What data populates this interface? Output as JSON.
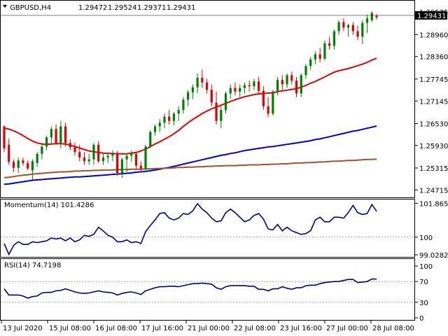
{
  "header": {
    "symbol": "GBPUSD,H4",
    "open": "1.29472",
    "high": "1.29524",
    "low": "1.29371",
    "close": "1.29431",
    "current_price_tag": "1.29431"
  },
  "chart_data": [
    {
      "type": "candlestick",
      "panel": "price",
      "ylim": [
        1.2455,
        1.2975
      ],
      "y_ticks": [
        "1.29575",
        "1.28960",
        "1.28360",
        "1.27745",
        "1.27145",
        "1.26530",
        "1.25930",
        "1.25315",
        "1.24715"
      ],
      "candles_ohlc": [
        [
          1.2645,
          1.2648,
          1.2575,
          1.2585
        ],
        [
          1.2595,
          1.2612,
          1.254,
          1.2548
        ],
        [
          1.2548,
          1.2555,
          1.252,
          1.2532
        ],
        [
          1.2532,
          1.256,
          1.2518,
          1.2552
        ],
        [
          1.2552,
          1.256,
          1.2538,
          1.2545
        ],
        [
          1.2545,
          1.2552,
          1.2525,
          1.253
        ],
        [
          1.2525,
          1.2555,
          1.25,
          1.255
        ],
        [
          1.2545,
          1.2575,
          1.2535,
          1.257
        ],
        [
          1.257,
          1.26,
          1.2555,
          1.259
        ],
        [
          1.259,
          1.262,
          1.258,
          1.2615
        ],
        [
          1.2615,
          1.2645,
          1.26,
          1.2638
        ],
        [
          1.2638,
          1.265,
          1.2595,
          1.26
        ],
        [
          1.26,
          1.266,
          1.2585,
          1.2645
        ],
        [
          1.2645,
          1.2655,
          1.259,
          1.26
        ],
        [
          1.26,
          1.261,
          1.258,
          1.2588
        ],
        [
          1.2588,
          1.26,
          1.2565,
          1.2575
        ],
        [
          1.2575,
          1.2595,
          1.255,
          1.256
        ],
        [
          1.256,
          1.2575,
          1.254,
          1.255
        ],
        [
          1.255,
          1.257,
          1.254,
          1.2555
        ],
        [
          1.2555,
          1.26,
          1.254,
          1.2595
        ],
        [
          1.2595,
          1.2605,
          1.2545,
          1.255
        ],
        [
          1.255,
          1.2572,
          1.254,
          1.256
        ],
        [
          1.256,
          1.2575,
          1.2545,
          1.2565
        ],
        [
          1.2565,
          1.258,
          1.255,
          1.2572
        ],
        [
          1.2572,
          1.2578,
          1.251,
          1.2518
        ],
        [
          1.2518,
          1.256,
          1.2505,
          1.2555
        ],
        [
          1.2555,
          1.2572,
          1.252,
          1.2565
        ],
        [
          1.2565,
          1.258,
          1.2548,
          1.257
        ],
        [
          1.257,
          1.2575,
          1.253,
          1.2538
        ],
        [
          1.2538,
          1.255,
          1.252,
          1.253
        ],
        [
          1.253,
          1.2595,
          1.252,
          1.259
        ],
        [
          1.259,
          1.2635,
          1.2585,
          1.263
        ],
        [
          1.263,
          1.265,
          1.262,
          1.2645
        ],
        [
          1.2645,
          1.2665,
          1.263,
          1.2655
        ],
        [
          1.2655,
          1.268,
          1.264,
          1.2672
        ],
        [
          1.2672,
          1.269,
          1.265,
          1.266
        ],
        [
          1.266,
          1.2685,
          1.2648,
          1.268
        ],
        [
          1.268,
          1.27,
          1.266,
          1.269
        ],
        [
          1.269,
          1.2725,
          1.268,
          1.2718
        ],
        [
          1.2718,
          1.2745,
          1.27,
          1.2738
        ],
        [
          1.2738,
          1.276,
          1.272,
          1.2752
        ],
        [
          1.2752,
          1.279,
          1.2735,
          1.2778
        ],
        [
          1.2778,
          1.28,
          1.275,
          1.2765
        ],
        [
          1.2765,
          1.2775,
          1.2735,
          1.2745
        ],
        [
          1.2745,
          1.276,
          1.27,
          1.271
        ],
        [
          1.271,
          1.274,
          1.265,
          1.266
        ],
        [
          1.266,
          1.27,
          1.264,
          1.269
        ],
        [
          1.269,
          1.274,
          1.268,
          1.2735
        ],
        [
          1.2735,
          1.276,
          1.272,
          1.275
        ],
        [
          1.275,
          1.2765,
          1.273,
          1.274
        ],
        [
          1.274,
          1.276,
          1.2725,
          1.275
        ],
        [
          1.275,
          1.2765,
          1.2735,
          1.2758
        ],
        [
          1.2758,
          1.277,
          1.274,
          1.2755
        ],
        [
          1.2755,
          1.2775,
          1.2745,
          1.2768
        ],
        [
          1.2768,
          1.278,
          1.2735,
          1.2742
        ],
        [
          1.2742,
          1.2755,
          1.269,
          1.27
        ],
        [
          1.27,
          1.2725,
          1.267,
          1.268
        ],
        [
          1.268,
          1.2745,
          1.2675,
          1.274
        ],
        [
          1.274,
          1.278,
          1.273,
          1.2772
        ],
        [
          1.2772,
          1.2785,
          1.2745,
          1.276
        ],
        [
          1.276,
          1.279,
          1.275,
          1.2785
        ],
        [
          1.2785,
          1.2795,
          1.276,
          1.277
        ],
        [
          1.277,
          1.278,
          1.2725,
          1.2735
        ],
        [
          1.2735,
          1.279,
          1.2725,
          1.2785
        ],
        [
          1.2785,
          1.2815,
          1.2775,
          1.281
        ],
        [
          1.281,
          1.2835,
          1.28,
          1.2828
        ],
        [
          1.2828,
          1.285,
          1.2815,
          1.2842
        ],
        [
          1.2842,
          1.286,
          1.282,
          1.283
        ],
        [
          1.283,
          1.288,
          1.2825,
          1.2872
        ],
        [
          1.2872,
          1.289,
          1.2855,
          1.2865
        ],
        [
          1.2865,
          1.291,
          1.2855,
          1.2905
        ],
        [
          1.2905,
          1.2935,
          1.2895,
          1.293
        ],
        [
          1.293,
          1.294,
          1.2905,
          1.2915
        ],
        [
          1.2915,
          1.2925,
          1.289,
          1.2922
        ],
        [
          1.2922,
          1.293,
          1.2895,
          1.2905
        ],
        [
          1.2905,
          1.292,
          1.288,
          1.289
        ],
        [
          1.289,
          1.2935,
          1.287,
          1.2928
        ],
        [
          1.2928,
          1.295,
          1.29,
          1.294
        ],
        [
          1.2935,
          1.296,
          1.293,
          1.2955
        ],
        [
          1.2947,
          1.2952,
          1.2937,
          1.2943
        ]
      ],
      "overlays": [
        {
          "color": "#e00000",
          "period_hint": "fast MA",
          "values": [
            1.264,
            1.2638,
            1.2633,
            1.2627,
            1.262,
            1.2612,
            1.2605,
            1.26,
            1.2597,
            1.2596,
            1.2597,
            1.2598,
            1.2598,
            1.2597,
            1.2594,
            1.259,
            1.2586,
            1.2582,
            1.2578,
            1.2576,
            1.2574,
            1.2572,
            1.2571,
            1.2571,
            1.257,
            1.257,
            1.257,
            1.2572,
            1.2574,
            1.2578,
            1.2583,
            1.259,
            1.2597,
            1.2603,
            1.261,
            1.2617,
            1.2625,
            1.2634,
            1.2645,
            1.2655,
            1.2664,
            1.2672,
            1.268,
            1.2687,
            1.2693,
            1.2698,
            1.2703,
            1.2708,
            1.2713,
            1.2718,
            1.2722,
            1.2726,
            1.2729,
            1.2732,
            1.2734,
            1.2735,
            1.2736,
            1.2737,
            1.274,
            1.2742,
            1.2744,
            1.2746,
            1.2748,
            1.2752,
            1.2757,
            1.2763,
            1.2768,
            1.2774,
            1.278,
            1.2787,
            1.2793,
            1.2797,
            1.28,
            1.2803,
            1.2807,
            1.2811,
            1.2815,
            1.282,
            1.2826,
            1.2831
          ]
        },
        {
          "color": "#0000c8",
          "period_hint": "slow MA",
          "values": [
            1.2487,
            1.2488,
            1.249,
            1.2492,
            1.2494,
            1.2496,
            1.2498,
            1.2499,
            1.25,
            1.2501,
            1.2502,
            1.2503,
            1.2504,
            1.2505,
            1.2506,
            1.2507,
            1.2507,
            1.2508,
            1.2509,
            1.251,
            1.2511,
            1.2512,
            1.2513,
            1.2514,
            1.2515,
            1.2516,
            1.2517,
            1.2518,
            1.252,
            1.2521,
            1.2522,
            1.2524,
            1.2526,
            1.2528,
            1.2531,
            1.2533,
            1.2536,
            1.2539,
            1.2542,
            1.2545,
            1.2548,
            1.2551,
            1.2554,
            1.2557,
            1.256,
            1.2563,
            1.2566,
            1.2568,
            1.2571,
            1.2573,
            1.2576,
            1.2579,
            1.2581,
            1.2583,
            1.2585,
            1.2587,
            1.2589,
            1.259,
            1.2592,
            1.2594,
            1.2596,
            1.2598,
            1.26,
            1.2602,
            1.2604,
            1.2606,
            1.2609,
            1.2611,
            1.2614,
            1.2617,
            1.262,
            1.2623,
            1.2626,
            1.2629,
            1.2632,
            1.2634,
            1.2637,
            1.264,
            1.2643,
            1.2646
          ]
        },
        {
          "color": "#a0522d",
          "period_hint": "long MA",
          "values": [
            1.2505,
            1.2506,
            1.2508,
            1.251,
            1.2512,
            1.2513,
            1.2515,
            1.2516,
            1.2517,
            1.2518,
            1.2519,
            1.252,
            1.2521,
            1.2521,
            1.2522,
            1.2523,
            1.2523,
            1.2524,
            1.2524,
            1.2525,
            1.2525,
            1.2526,
            1.2526,
            1.2526,
            1.2527,
            1.2527,
            1.2527,
            1.2528,
            1.2528,
            1.2528,
            1.2529,
            1.2529,
            1.253,
            1.253,
            1.2531,
            1.2531,
            1.2532,
            1.2533,
            1.2533,
            1.2534,
            1.2534,
            1.2535,
            1.2535,
            1.2536,
            1.2536,
            1.2537,
            1.2537,
            1.2538,
            1.2538,
            1.2538,
            1.2539,
            1.2539,
            1.254,
            1.254,
            1.254,
            1.2541,
            1.2541,
            1.2542,
            1.2542,
            1.2543,
            1.2543,
            1.2544,
            1.2545,
            1.2545,
            1.2546,
            1.2546,
            1.2547,
            1.2548,
            1.2548,
            1.2549,
            1.255,
            1.255,
            1.2551,
            1.2552,
            1.2552,
            1.2553,
            1.2554,
            1.2555,
            1.2555,
            1.2556
          ]
        }
      ]
    },
    {
      "type": "line",
      "panel": "momentum",
      "title": "Momentum(14) 101.4286",
      "ylim": [
        98.95,
        102.0
      ],
      "y_ticks": [
        "101.8652",
        "100",
        "99.0282"
      ],
      "reference_level": 100,
      "series": [
        {
          "color": "#000080",
          "values": [
            99.65,
            99.05,
            99.55,
            99.75,
            99.6,
            99.6,
            99.75,
            99.7,
            99.75,
            99.8,
            99.95,
            99.9,
            99.95,
            99.8,
            99.95,
            99.75,
            99.85,
            100.1,
            100.05,
            100.15,
            100.55,
            100.35,
            100.1,
            100.0,
            99.75,
            99.75,
            99.85,
            99.7,
            99.75,
            99.65,
            100.3,
            100.65,
            100.95,
            101.3,
            101.35,
            101.05,
            100.95,
            101.05,
            101.3,
            101.25,
            101.45,
            101.85,
            101.55,
            101.35,
            101.05,
            100.85,
            100.9,
            101.35,
            101.55,
            101.35,
            101.1,
            100.85,
            100.95,
            101.2,
            101.3,
            101.0,
            100.45,
            100.4,
            100.7,
            100.35,
            100.55,
            100.35,
            100.25,
            100.15,
            100.2,
            100.35,
            100.95,
            101.1,
            100.85,
            100.85,
            101.1,
            101.1,
            101.05,
            101.35,
            101.75,
            101.35,
            101.25,
            101.3,
            101.8,
            101.43
          ]
        }
      ]
    },
    {
      "type": "line",
      "panel": "rsi",
      "title": "RSI(14) 74.7198",
      "ylim": [
        0,
        100
      ],
      "y_ticks": [
        "100",
        "70",
        "30",
        "0"
      ],
      "reference_levels": [
        70,
        30
      ],
      "series": [
        {
          "color": "#000080",
          "values": [
            56,
            44,
            44,
            44,
            42,
            38,
            41,
            42,
            48,
            49,
            49,
            52,
            53,
            56,
            53,
            50,
            48,
            47,
            48,
            50,
            52,
            50,
            49,
            48,
            44,
            47,
            49,
            50,
            48,
            45,
            52,
            55,
            58,
            60,
            60,
            61,
            61,
            60,
            62,
            64,
            66,
            66,
            67,
            66,
            65,
            58,
            55,
            60,
            62,
            62,
            62,
            62,
            61,
            61,
            55,
            55,
            52,
            56,
            56,
            60,
            57,
            55,
            58,
            58,
            62,
            63,
            63,
            66,
            68,
            69,
            70,
            70,
            72,
            74,
            74,
            68,
            69,
            70,
            75,
            74.72
          ]
        }
      ]
    }
  ],
  "x_axis_labels": [
    "13 Jul 2020",
    "15 Jul 08:00",
    "16 Jul 08:00",
    "17 Jul 16:00",
    "21 Jul 00:00",
    "22 Jul 08:00",
    "23 Jul 16:00",
    "27 Jul 00:00",
    "28 Jul 08:00"
  ],
  "colors": {
    "bull_candle": "#008000",
    "bear_candle": "#e00000",
    "level_line": "#a0a0a0"
  }
}
